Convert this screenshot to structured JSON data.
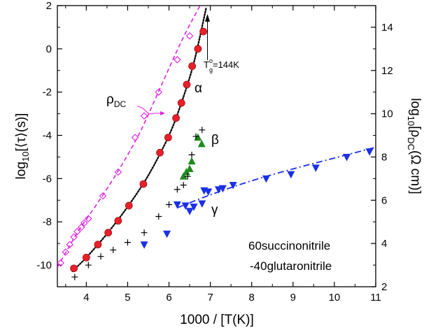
{
  "chart_data": {
    "type": "scatter",
    "title": "",
    "xlabel": "1000 / [T(K)]",
    "ylabel_left": {
      "pre": "log",
      "sub": "10",
      "post": "[⟨τ⟩(s)]"
    },
    "ylabel_right": {
      "pre": "log",
      "sub1": "10",
      "mid": "[ρ",
      "sub2": "DC",
      "post": "(Ω cm)]"
    },
    "xlim": [
      3.3,
      11.0
    ],
    "ylim_left": [
      -11,
      2
    ],
    "ylim_right": [
      2,
      15
    ],
    "xticks": [
      4,
      5,
      6,
      7,
      8,
      9,
      10,
      11
    ],
    "yticks_left": [
      -10,
      -8,
      -6,
      -4,
      -2,
      0,
      2
    ],
    "yticks_right": [
      2,
      4,
      6,
      8,
      10,
      12,
      14
    ],
    "grid": false,
    "colors": {
      "alpha": "#e8202a",
      "beta": "#1e8a1e",
      "gamma": "#1a2fe6",
      "rho": "#e020e0",
      "plus": "#000000",
      "fit": "#000000"
    },
    "series": [
      {
        "name": "α",
        "axis": "left",
        "marker": "circle",
        "color": "#e8202a",
        "x": [
          3.7,
          4.0,
          4.28,
          4.53,
          4.77,
          5.03,
          5.38,
          5.78,
          5.98,
          6.17,
          6.3,
          6.43,
          6.56,
          6.7,
          6.83
        ],
        "y": [
          -10.15,
          -9.65,
          -9.05,
          -8.5,
          -7.95,
          -7.25,
          -6.25,
          -4.8,
          -4.1,
          -3.2,
          -2.5,
          -1.65,
          -0.8,
          0.0,
          0.8
        ]
      },
      {
        "name": "β",
        "axis": "left",
        "marker": "triangle-up",
        "color": "#1e8a1e",
        "x": [
          6.35,
          6.42,
          6.5,
          6.55,
          6.7,
          6.79
        ],
        "y": [
          -5.9,
          -5.7,
          -5.55,
          -5.2,
          -4.1,
          -4.4
        ]
      },
      {
        "name": "γ",
        "axis": "left",
        "marker": "triangle-down",
        "color": "#1a2fe6",
        "x": [
          5.4,
          5.95,
          6.2,
          6.4,
          6.5,
          6.6,
          6.8,
          6.85,
          6.95,
          7.2,
          7.3,
          7.55,
          8.35,
          8.95,
          9.55,
          10.3,
          10.85
        ],
        "y": [
          -9.05,
          -8.55,
          -7.2,
          -7.25,
          -7.5,
          -7.3,
          -7.15,
          -6.55,
          -6.6,
          -6.5,
          -6.45,
          -6.3,
          -6.0,
          -5.8,
          -5.5,
          -5.0,
          -4.75
        ]
      },
      {
        "name": "",
        "axis": "left",
        "marker": "plus",
        "color": "#000000",
        "x": [
          3.72,
          4.05,
          4.35,
          4.65,
          5.0,
          5.4,
          5.75,
          6.0,
          6.2,
          6.35,
          6.45,
          6.55,
          6.65,
          6.8
        ],
        "y": [
          -10.55,
          -10.0,
          -9.6,
          -9.3,
          -8.95,
          -8.5,
          -7.75,
          -7.2,
          -6.5,
          -6.3,
          -5.9,
          -4.9,
          -4.05,
          -3.75
        ]
      },
      {
        "name": "ρDC",
        "axis": "right",
        "marker": "diamond-open",
        "color": "#e020e0",
        "x": [
          3.38,
          3.5,
          3.6,
          3.7,
          3.78,
          3.88,
          3.95,
          4.05,
          4.4,
          4.77,
          5.18,
          5.4,
          5.75,
          6.2,
          6.5
        ],
        "y": [
          3.1,
          3.6,
          3.95,
          4.3,
          4.55,
          4.75,
          4.95,
          5.15,
          6.2,
          7.3,
          8.9,
          9.9,
          11.0,
          12.5,
          13.6
        ]
      }
    ],
    "fits": [
      {
        "kind": "solid",
        "color": "#000000",
        "axis": "left",
        "x": [
          3.65,
          4.0,
          4.5,
          5.0,
          5.5,
          6.0,
          6.3,
          6.6,
          6.9
        ],
        "y": [
          -10.3,
          -9.65,
          -8.55,
          -7.3,
          -5.85,
          -4.0,
          -2.5,
          -0.65,
          1.9
        ]
      },
      {
        "kind": "dotted",
        "color": "#000000",
        "axis": "left",
        "x": [
          3.65,
          4.0,
          4.5,
          5.0,
          5.5,
          6.0,
          6.3,
          6.6,
          6.9
        ],
        "y": [
          -10.3,
          -9.65,
          -8.55,
          -7.3,
          -5.85,
          -4.0,
          -2.5,
          -0.65,
          1.9
        ]
      },
      {
        "kind": "dashed",
        "color": "#e020e0",
        "axis": "right",
        "x": [
          3.3,
          3.8,
          4.3,
          4.8,
          5.3,
          5.8,
          6.3,
          6.75
        ],
        "y": [
          2.9,
          4.55,
          5.95,
          7.45,
          9.15,
          11.25,
          13.35,
          15.0
        ]
      },
      {
        "kind": "dashdot",
        "color": "#1a2fe6",
        "axis": "left",
        "x": [
          6.2,
          7.0,
          8.0,
          9.0,
          10.0,
          11.0
        ],
        "y": [
          -7.35,
          -6.75,
          -6.1,
          -5.55,
          -5.05,
          -4.55
        ]
      }
    ],
    "annotations": {
      "tg": {
        "pre": "T",
        "sup": "o",
        "sub": "g",
        "post": "=144K"
      },
      "tg_arrow_x": 6.93,
      "alpha_label": "α",
      "beta_label": "β",
      "gamma_label": "γ",
      "rho_label": {
        "pre": "ρ",
        "sub": "DC"
      },
      "sample_line1": "60succinonitrile",
      "sample_line2": "-40glutaronitrile"
    }
  }
}
